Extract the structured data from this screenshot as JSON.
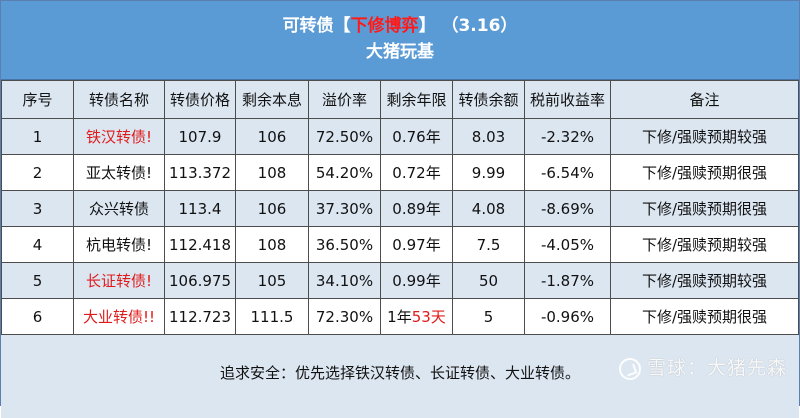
{
  "header": {
    "title_prefix": "可转债【",
    "title_highlight": "下修博弈",
    "title_suffix": "】 （3.16）",
    "subtitle": "大猪玩基"
  },
  "table": {
    "columns": [
      "序号",
      "转债名称",
      "转债价格",
      "剩余本息",
      "溢价率",
      "剩余年限",
      "转债余额",
      "税前收益率",
      "备注"
    ],
    "rows": [
      {
        "no": "1",
        "name": "铁汉转债!",
        "name_red": true,
        "price": "107.9",
        "principal": "106",
        "premium": "72.50%",
        "years": "0.76年",
        "balance": "8.03",
        "yield": "-2.32%",
        "note": "下修/强赎预期较强"
      },
      {
        "no": "2",
        "name": "亚太转债!",
        "name_red": false,
        "price": "113.372",
        "principal": "108",
        "premium": "54.20%",
        "years": "0.72年",
        "balance": "9.99",
        "yield": "-6.54%",
        "note": "下修/强赎预期很强"
      },
      {
        "no": "3",
        "name": "众兴转债",
        "name_red": false,
        "price": "113.4",
        "principal": "106",
        "premium": "37.30%",
        "years": "0.89年",
        "balance": "4.08",
        "yield": "-8.69%",
        "note": "下修/强赎预期很强"
      },
      {
        "no": "4",
        "name": "杭电转债!",
        "name_red": false,
        "price": "112.418",
        "principal": "108",
        "premium": "36.50%",
        "years": "0.97年",
        "balance": "7.5",
        "yield": "-4.05%",
        "note": "下修/强赎预期较强"
      },
      {
        "no": "5",
        "name": "长证转债!",
        "name_red": true,
        "price": "106.975",
        "principal": "105",
        "premium": "34.10%",
        "years": "0.99年",
        "balance": "50",
        "yield": "-1.87%",
        "note": "下修/强赎预期较强"
      },
      {
        "no": "6",
        "name": "大业转债!!",
        "name_red": true,
        "price": "112.723",
        "principal": "111.5",
        "premium": "72.30%",
        "years_prefix": "1年",
        "years_red": "53天",
        "balance": "5",
        "yield": "-0.96%",
        "note": "下修/强赎预期很强"
      }
    ]
  },
  "footer": {
    "note": "追求安全：优先选择铁汉转债、长证转债、大业转债。",
    "watermark": "雪球：大猪先森"
  }
}
